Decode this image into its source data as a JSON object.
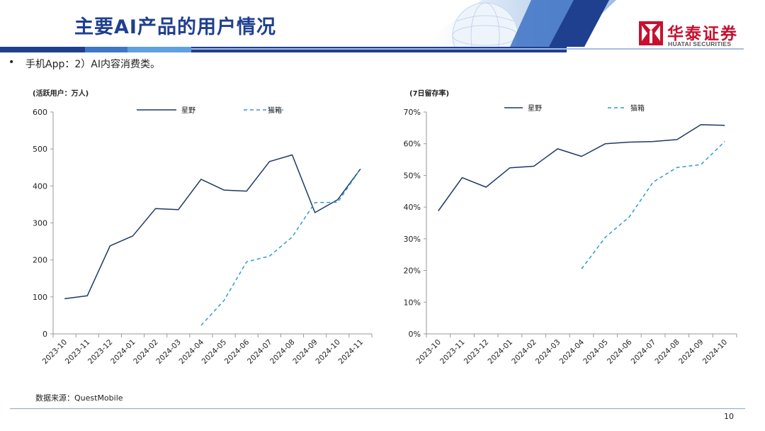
{
  "header": {
    "title": "主要AI产品的用户情况",
    "logo_cn": "华泰证券",
    "logo_en": "HUATAI SECURITIES",
    "brand_color": "#c8102e",
    "accent_color": "#1f3f8f"
  },
  "bullet": {
    "marker": "•",
    "text": "手机App：2）AI内容消费类。"
  },
  "footer": {
    "source": "数据来源：QuestMobile",
    "page_number": "10"
  },
  "chart_data": [
    {
      "type": "line",
      "unit_label": "(活跃用户：万人)",
      "x": [
        "2023-10",
        "2023-11",
        "2023-12",
        "2024-01",
        "2024-02",
        "2024-03",
        "2024-04",
        "2024-05",
        "2024-06",
        "2024-07",
        "2024-08",
        "2024-09",
        "2024-10",
        "2024-11"
      ],
      "ylim": [
        0,
        600
      ],
      "yticks": [
        0,
        100,
        200,
        300,
        400,
        500,
        600
      ],
      "ytick_labels": [
        "0",
        "100",
        "200",
        "300",
        "400",
        "500",
        "600"
      ],
      "legend_position": "top",
      "series": [
        {
          "name": "星野",
          "color": "#1f3864",
          "style": "solid",
          "values": [
            95,
            103,
            238,
            265,
            339,
            336,
            418,
            389,
            386,
            466,
            484,
            328,
            363,
            446
          ]
        },
        {
          "name": "猫箱",
          "color": "#2e9bd6",
          "style": "dashed",
          "values": [
            null,
            null,
            null,
            null,
            null,
            null,
            23,
            90,
            195,
            210,
            262,
            355,
            356,
            446
          ]
        }
      ]
    },
    {
      "type": "line",
      "unit_label": "(7日留存率)",
      "x": [
        "2023-10",
        "2023-11",
        "2023-12",
        "2024-01",
        "2024-02",
        "2024-03",
        "2024-04",
        "2024-05",
        "2024-06",
        "2024-07",
        "2024-08",
        "2024-09",
        "2024-10"
      ],
      "ylim": [
        0,
        70
      ],
      "yticks": [
        0,
        10,
        20,
        30,
        40,
        50,
        60,
        70
      ],
      "ytick_labels": [
        "0%",
        "10%",
        "20%",
        "30%",
        "40%",
        "50%",
        "60%",
        "70%"
      ],
      "legend_position": "top",
      "series": [
        {
          "name": "星野",
          "color": "#1f3864",
          "style": "solid",
          "values": [
            38.8,
            49.3,
            46.3,
            52.4,
            52.9,
            58.4,
            56.0,
            60.0,
            60.5,
            60.7,
            61.3,
            66.0,
            65.8
          ]
        },
        {
          "name": "猫箱",
          "color": "#2e9bd6",
          "style": "dashed",
          "values": [
            null,
            null,
            null,
            null,
            null,
            null,
            20.5,
            30.5,
            36.9,
            47.9,
            52.5,
            53.4,
            60.7
          ]
        }
      ]
    }
  ]
}
